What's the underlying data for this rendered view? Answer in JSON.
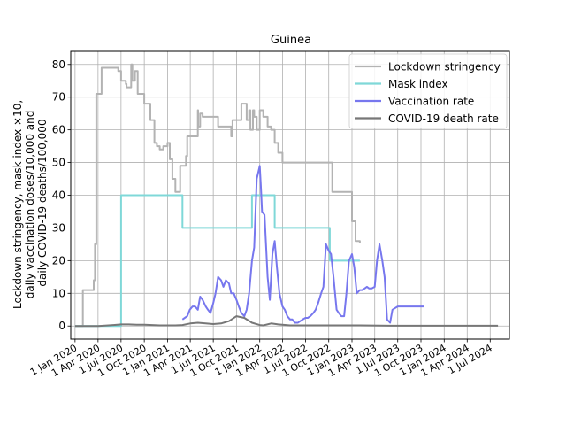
{
  "chart_data": {
    "type": "line",
    "title": "Guinea",
    "ylabel_lines": [
      "Lockdown stringency, mask index ×10,",
      "daily vaccination doses/10,000 and",
      "daily COVID-19 deaths/100,000"
    ],
    "xlabel": "",
    "ylim": [
      -4,
      84
    ],
    "yticks": [
      0,
      10,
      20,
      30,
      40,
      50,
      60,
      70,
      80
    ],
    "xlim": [
      "2019-12-15",
      "2024-09-15"
    ],
    "xticks": [
      "2020-01-01",
      "2020-04-01",
      "2020-07-01",
      "2020-10-01",
      "2021-01-01",
      "2021-04-01",
      "2021-07-01",
      "2021-10-01",
      "2022-01-01",
      "2022-04-01",
      "2022-07-01",
      "2022-10-01",
      "2023-01-01",
      "2023-04-01",
      "2023-07-01",
      "2023-10-01",
      "2024-01-01",
      "2024-04-01",
      "2024-07-01"
    ],
    "xtick_labels": [
      "1 Jan 2020",
      "1 Apr 2020",
      "1 Jul 2020",
      "1 Oct 2020",
      "1 Jan 2021",
      "1 Apr 2021",
      "1 Jul 2021",
      "1 Oct 2021",
      "1 Jan 2022",
      "1 Apr 2022",
      "1 Jul 2022",
      "1 Oct 2022",
      "1 Jan 2023",
      "1 Apr 2023",
      "1 Jul 2023",
      "1 Oct 2023",
      "1 Jan 2024",
      "1 Apr 2024",
      "1 Jul 2024"
    ],
    "grid": true,
    "legend_position": "top-right",
    "series": [
      {
        "name": "Lockdown stringency",
        "color": "#b3b3b3",
        "step": true,
        "x": [
          "2020-01-01",
          "2020-02-01",
          "2020-03-01",
          "2020-03-15",
          "2020-03-20",
          "2020-03-25",
          "2020-04-15",
          "2020-06-15",
          "2020-06-20",
          "2020-07-01",
          "2020-07-10",
          "2020-07-20",
          "2020-07-23",
          "2020-07-25",
          "2020-08-10",
          "2020-08-15",
          "2020-08-25",
          "2020-09-05",
          "2020-09-20",
          "2020-10-01",
          "2020-10-05",
          "2020-10-15",
          "2020-10-25",
          "2020-11-05",
          "2020-11-10",
          "2020-11-20",
          "2020-12-01",
          "2020-12-10",
          "2020-12-15",
          "2021-01-01",
          "2021-01-10",
          "2021-01-20",
          "2021-02-01",
          "2021-02-20",
          "2021-03-05",
          "2021-03-10",
          "2021-03-15",
          "2021-03-20",
          "2021-05-01",
          "2021-05-02",
          "2021-05-10",
          "2021-05-20",
          "2021-06-01",
          "2021-07-10",
          "2021-07-20",
          "2021-09-01",
          "2021-09-10",
          "2021-09-15",
          "2021-10-01",
          "2021-10-15",
          "2021-10-20",
          "2021-11-05",
          "2021-11-10",
          "2021-11-20",
          "2021-11-25",
          "2021-12-05",
          "2021-12-10",
          "2021-12-20",
          "2022-01-01",
          "2022-01-15",
          "2022-02-01",
          "2022-02-15",
          "2022-03-01",
          "2022-03-15",
          "2022-04-01",
          "2022-04-10",
          "2022-09-15",
          "2022-10-15",
          "2022-11-01",
          "2022-11-10",
          "2022-11-15",
          "2023-01-01",
          "2023-01-15",
          "2023-02-01"
        ],
        "y": [
          0,
          11,
          11,
          14,
          25,
          71,
          79,
          79,
          78,
          75,
          75,
          74,
          73,
          73,
          80,
          75,
          78,
          71,
          71,
          68,
          68,
          68,
          63,
          63,
          56,
          55,
          54,
          54,
          55,
          56,
          51,
          45,
          41,
          49,
          49,
          49,
          52,
          58,
          66,
          61,
          65,
          64,
          64,
          64,
          61,
          61,
          58,
          63,
          63,
          63,
          68,
          68,
          63,
          66,
          60,
          66,
          64,
          60,
          66,
          64,
          61,
          60,
          56,
          53,
          50,
          50,
          50,
          41,
          41,
          41,
          41,
          32,
          26,
          25.5
        ]
      },
      {
        "name": "Mask index",
        "color": "#7fd8d8",
        "step": true,
        "x": [
          "2020-01-01",
          "2020-04-01",
          "2020-07-01",
          "2020-10-01",
          "2021-01-01",
          "2021-01-10",
          "2021-03-01",
          "2021-05-01",
          "2021-06-01",
          "2021-08-01",
          "2021-09-01",
          "2021-10-01",
          "2021-10-20",
          "2021-12-01",
          "2022-03-01",
          "2022-06-01",
          "2022-08-01",
          "2022-10-01",
          "2022-10-05",
          "2022-12-01",
          "2023-02-01"
        ],
        "y": [
          0,
          0,
          40,
          40,
          40,
          40,
          30,
          30,
          30,
          30,
          30,
          30,
          30,
          40,
          30,
          30,
          30,
          30,
          20,
          20,
          20
        ]
      },
      {
        "name": "Vaccination rate",
        "color": "#7777ee",
        "step": false,
        "x": [
          "2021-03-01",
          "2021-03-10",
          "2021-03-20",
          "2021-03-30",
          "2021-04-10",
          "2021-04-20",
          "2021-05-01",
          "2021-05-10",
          "2021-05-20",
          "2021-06-01",
          "2021-06-10",
          "2021-06-20",
          "2021-07-01",
          "2021-07-10",
          "2021-07-20",
          "2021-08-01",
          "2021-08-10",
          "2021-08-20",
          "2021-09-01",
          "2021-09-10",
          "2021-09-20",
          "2021-10-01",
          "2021-10-10",
          "2021-10-20",
          "2021-11-01",
          "2021-11-10",
          "2021-11-20",
          "2021-12-01",
          "2021-12-10",
          "2021-12-20",
          "2022-01-01",
          "2022-01-05",
          "2022-01-10",
          "2022-01-20",
          "2022-02-01",
          "2022-02-10",
          "2022-02-20",
          "2022-03-01",
          "2022-03-10",
          "2022-03-20",
          "2022-04-01",
          "2022-04-10",
          "2022-04-20",
          "2022-05-01",
          "2022-05-10",
          "2022-05-20",
          "2022-06-01",
          "2022-06-10",
          "2022-06-20",
          "2022-07-01",
          "2022-07-10",
          "2022-07-20",
          "2022-08-01",
          "2022-08-10",
          "2022-08-20",
          "2022-09-01",
          "2022-09-10",
          "2022-09-20",
          "2022-10-01",
          "2022-10-10",
          "2022-10-20",
          "2022-11-01",
          "2022-11-10",
          "2022-11-20",
          "2022-12-01",
          "2022-12-10",
          "2022-12-20",
          "2023-01-01",
          "2023-01-10",
          "2023-01-20",
          "2023-02-01",
          "2023-02-10",
          "2023-02-20",
          "2023-03-01",
          "2023-03-10",
          "2023-03-20",
          "2023-04-01",
          "2023-04-10",
          "2023-04-20",
          "2023-05-01",
          "2023-05-10",
          "2023-05-20",
          "2023-06-01",
          "2023-06-10",
          "2023-07-01",
          "2023-08-01",
          "2023-09-01",
          "2023-10-01",
          "2023-10-15"
        ],
        "y": [
          2,
          2.5,
          3,
          5,
          6,
          6,
          5,
          9,
          8,
          6,
          5,
          4,
          7,
          10,
          15,
          14,
          12,
          14,
          13,
          10,
          10,
          8,
          6,
          4,
          3,
          5,
          10,
          20,
          24,
          45,
          49,
          43,
          35,
          34,
          15,
          8,
          22,
          26,
          18,
          10,
          6,
          5,
          3,
          2,
          2,
          1,
          1,
          1.5,
          2,
          2.5,
          2.5,
          3,
          4,
          5,
          7,
          10,
          12,
          25,
          23,
          22,
          15,
          5,
          4,
          3,
          3,
          10,
          20,
          22,
          18,
          10,
          11,
          11,
          11.5,
          12,
          11.5,
          11.5,
          12,
          20,
          25,
          20,
          15,
          2,
          1,
          5,
          6,
          6,
          6,
          6,
          6
        ]
      },
      {
        "name": "COVID-19 death rate",
        "color": "#777777",
        "step": false,
        "x": [
          "2020-01-01",
          "2020-04-01",
          "2020-06-01",
          "2020-07-01",
          "2020-08-01",
          "2020-09-01",
          "2020-10-01",
          "2020-11-01",
          "2020-12-01",
          "2021-01-01",
          "2021-02-01",
          "2021-03-01",
          "2021-04-01",
          "2021-05-01",
          "2021-06-01",
          "2021-07-01",
          "2021-08-01",
          "2021-09-01",
          "2021-10-01",
          "2021-11-01",
          "2021-12-01",
          "2022-01-01",
          "2022-01-15",
          "2022-02-15",
          "2022-03-15",
          "2022-05-01",
          "2022-08-01",
          "2022-11-01",
          "2023-02-01",
          "2023-06-01",
          "2023-10-01",
          "2024-01-01",
          "2024-04-01",
          "2024-07-01",
          "2024-08-01"
        ],
        "y": [
          0,
          0,
          0.3,
          0.5,
          0.5,
          0.4,
          0.4,
          0.3,
          0.2,
          0.2,
          0.2,
          0.3,
          0.8,
          1,
          0.8,
          0.6,
          0.8,
          1.5,
          3,
          2.5,
          1,
          0.3,
          0.2,
          0.8,
          0.5,
          0.2,
          0.2,
          0.2,
          0.2,
          0.1,
          0.1,
          0.1,
          0.1,
          0.1,
          0.1
        ]
      }
    ]
  }
}
